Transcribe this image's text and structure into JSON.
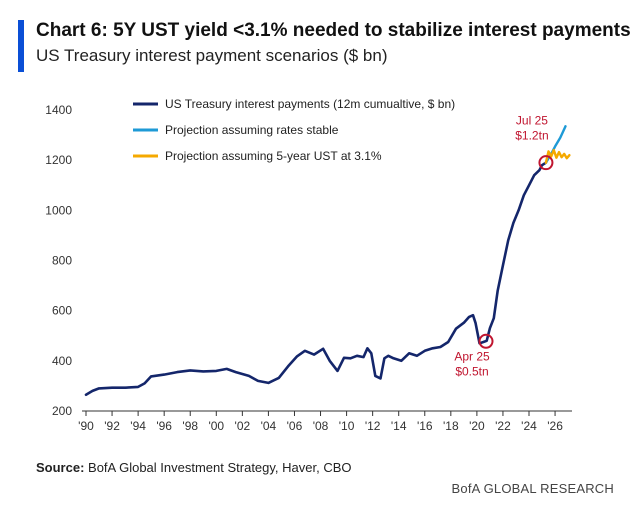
{
  "header": {
    "title": "Chart 6: 5Y UST yield <3.1% needed to stabilize interest payments",
    "subtitle": "US Treasury interest payment scenarios ($ bn)"
  },
  "footer": {
    "source_label": "Source:",
    "source_text": " BofA Global Investment Strategy, Haver, CBO",
    "brand": "BofA GLOBAL RESEARCH"
  },
  "chart_data": {
    "type": "line",
    "ylim": [
      200,
      1400
    ],
    "xlim": [
      1990,
      2027.3
    ],
    "yticks": [
      200,
      400,
      600,
      800,
      1000,
      1200,
      1400
    ],
    "xticks": [
      1990,
      1992,
      1994,
      1996,
      1998,
      2000,
      2002,
      2004,
      2006,
      2008,
      2010,
      2012,
      2014,
      2016,
      2018,
      2020,
      2022,
      2024,
      2026
    ],
    "xtick_labels": [
      "'90",
      "'92",
      "'94",
      "'96",
      "'98",
      "'00",
      "'02",
      "'04",
      "'06",
      "'08",
      "'10",
      "'12",
      "'14",
      "'16",
      "'18",
      "'20",
      "'22",
      "'24",
      "'26"
    ],
    "legend_position": "top-left",
    "series": [
      {
        "name": "US Treasury interest payments (12m cumualtive, $ bn)",
        "color": "#14266b",
        "x": [
          1990,
          1990.5,
          1991,
          1992,
          1993,
          1994,
          1994.5,
          1995,
          1996,
          1997,
          1998,
          1999,
          2000,
          2000.8,
          2001.5,
          2002.5,
          2003.2,
          2004,
          2004.8,
          2005.5,
          2006.2,
          2006.8,
          2007.5,
          2008.2,
          2008.7,
          2009.3,
          2009.8,
          2010.3,
          2010.8,
          2011.3,
          2011.6,
          2011.9,
          2012.2,
          2012.6,
          2012.9,
          2013.2,
          2013.6,
          2014.2,
          2014.8,
          2015.4,
          2016,
          2016.6,
          2017.2,
          2017.8,
          2018.4,
          2019,
          2019.4,
          2019.7,
          2019.9,
          2020.2,
          2020.5,
          2020.75,
          2021.0,
          2021.3,
          2021.6,
          2022.0,
          2022.4,
          2022.8,
          2023.2,
          2023.6,
          2024.0,
          2024.4,
          2024.8,
          2025.0,
          2025.3
        ],
        "y": [
          265,
          280,
          290,
          293,
          293,
          296,
          310,
          338,
          345,
          355,
          362,
          358,
          360,
          368,
          355,
          340,
          320,
          312,
          332,
          378,
          418,
          440,
          425,
          448,
          400,
          360,
          412,
          410,
          420,
          415,
          450,
          430,
          340,
          330,
          410,
          420,
          410,
          400,
          430,
          420,
          440,
          450,
          455,
          475,
          528,
          552,
          575,
          582,
          550,
          470,
          475,
          480,
          530,
          570,
          680,
          780,
          880,
          950,
          1000,
          1060,
          1100,
          1140,
          1160,
          1180,
          1190
        ]
      },
      {
        "name": "Projection assuming rates stable",
        "color": "#1e9ad6",
        "x": [
          2025.3,
          2025.7,
          2026.0,
          2026.4,
          2026.8
        ],
        "y": [
          1190,
          1225,
          1255,
          1290,
          1335
        ]
      },
      {
        "name": "Projection assuming 5-year UST at 3.1%",
        "color": "#f5a900",
        "x": [
          2025.3,
          2025.5,
          2025.7,
          2025.9,
          2026.1,
          2026.3,
          2026.5,
          2026.7,
          2026.9,
          2027.1
        ],
        "y": [
          1190,
          1235,
          1215,
          1240,
          1210,
          1232,
          1212,
          1225,
          1208,
          1220
        ]
      }
    ],
    "annotations": [
      {
        "x": 2025.3,
        "y": 1190,
        "line1": "Jul 25",
        "line2": "$1.2tn",
        "placement": "above"
      },
      {
        "x": 2020.7,
        "y": 478,
        "line1": "Apr 25",
        "line2": "$0.5tn",
        "placement": "below"
      }
    ]
  }
}
